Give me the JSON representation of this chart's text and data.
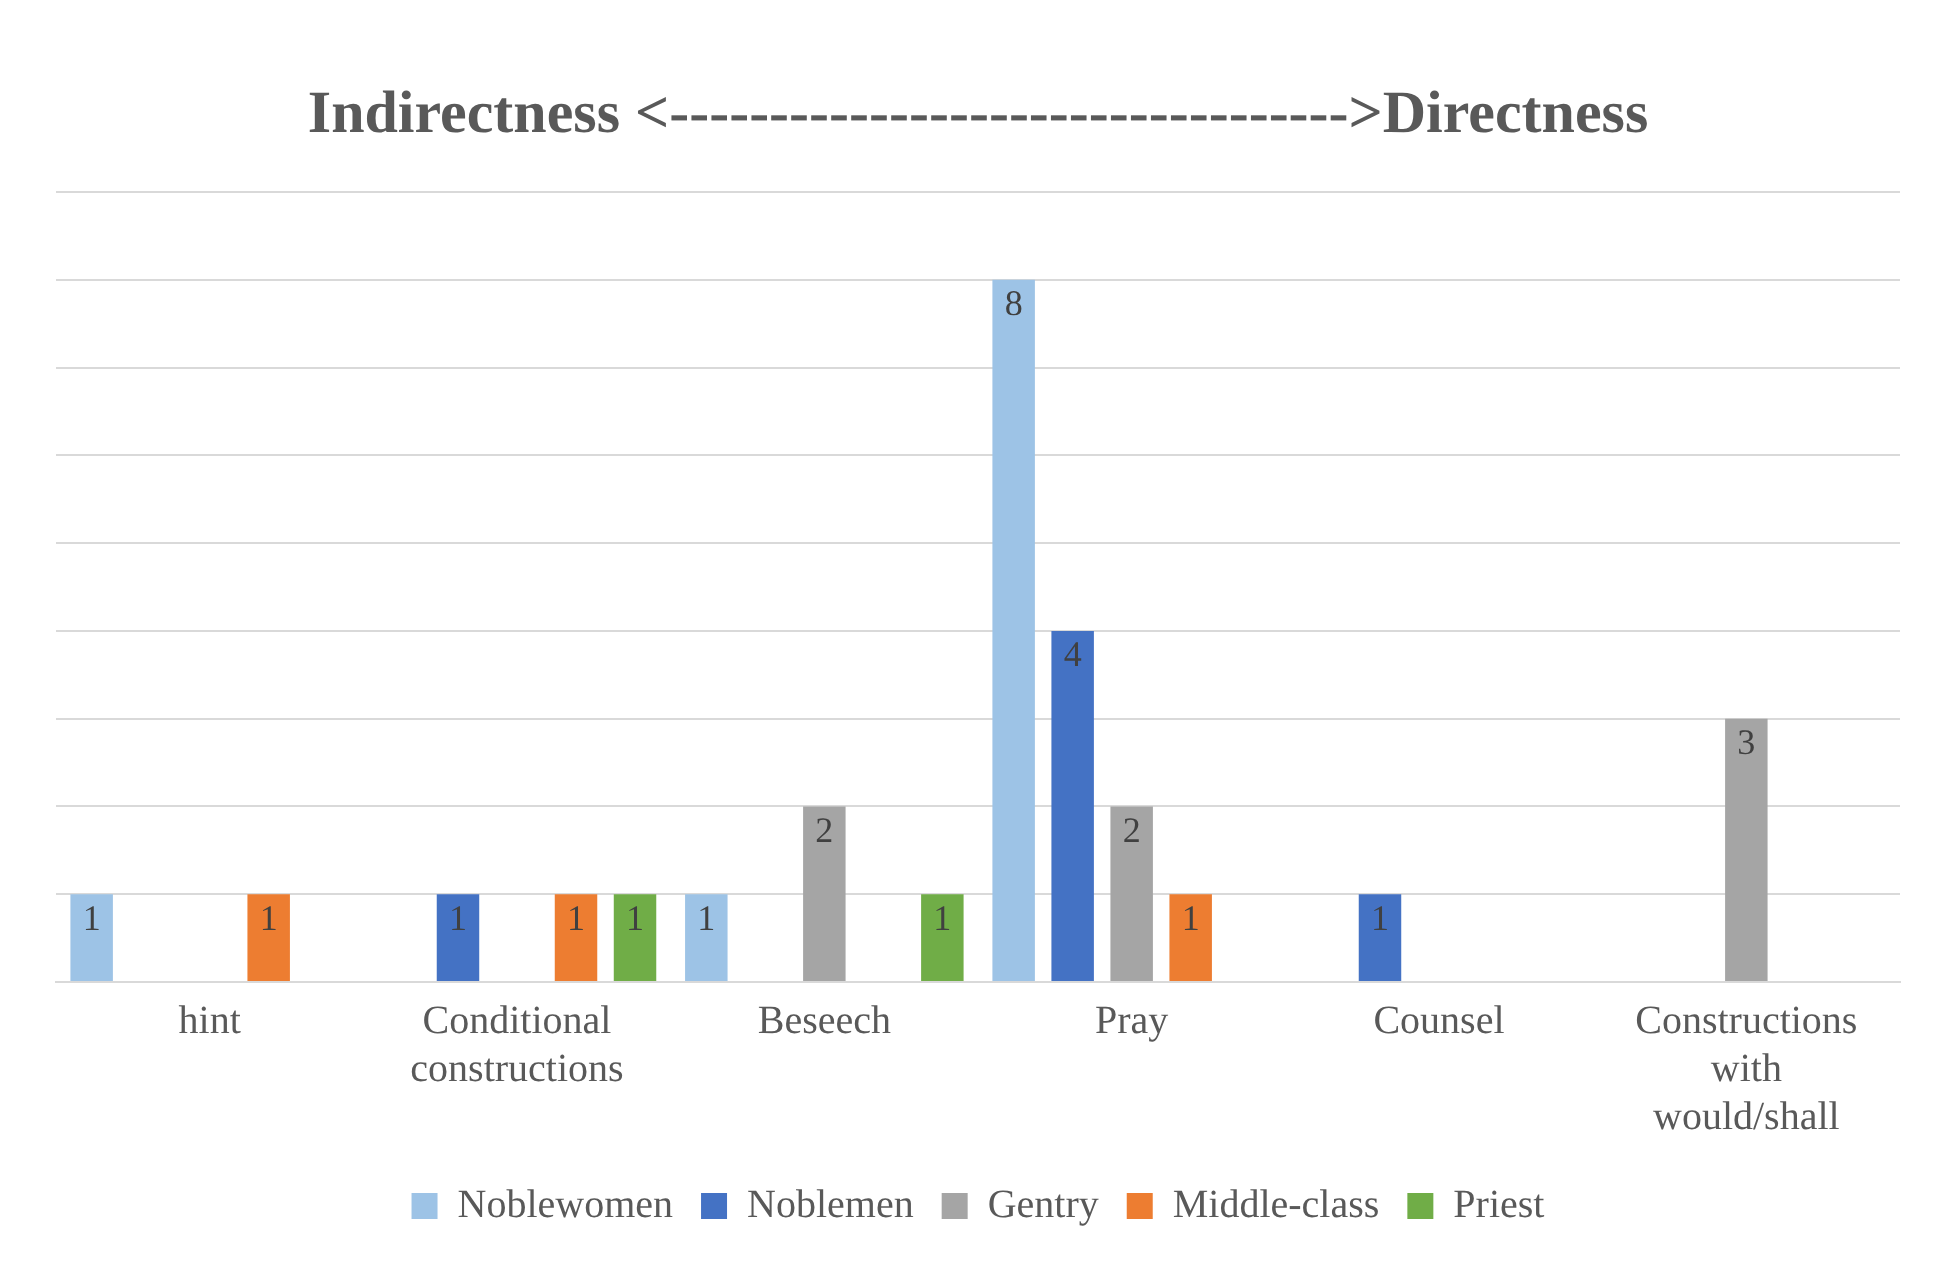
{
  "chart_data": {
    "type": "bar",
    "title": "Indirectness <---------------------------------->Directness",
    "categories": [
      "hint",
      "Conditional constructions",
      "Beseech",
      "Pray",
      "Counsel",
      "Constructions with would/shall"
    ],
    "series": [
      {
        "name": "Noblewomen",
        "color": "#9dc3e6",
        "values": [
          1,
          null,
          1,
          8,
          null,
          null
        ]
      },
      {
        "name": "Noblemen",
        "color": "#4472c4",
        "values": [
          null,
          1,
          null,
          4,
          1,
          null
        ]
      },
      {
        "name": "Gentry",
        "color": "#a5a5a5",
        "values": [
          null,
          null,
          2,
          2,
          null,
          3
        ]
      },
      {
        "name": "Middle-class",
        "color": "#ed7d31",
        "values": [
          1,
          1,
          null,
          1,
          null,
          null
        ]
      },
      {
        "name": "Priest",
        "color": "#70ad47",
        "values": [
          null,
          1,
          1,
          null,
          null,
          null
        ]
      }
    ],
    "ylim": [
      0,
      9
    ],
    "yticks": [
      {
        "value": 0,
        "label": null
      },
      {
        "value": 1,
        "label": null
      },
      {
        "value": 2,
        "label": null
      },
      {
        "value": 3,
        "label": null
      },
      {
        "value": 4,
        "label": null
      },
      {
        "value": 5,
        "label": null
      },
      {
        "value": 6,
        "label": null
      },
      {
        "value": 7,
        "label": null
      },
      {
        "value": 8,
        "label": null
      },
      {
        "value": 9,
        "label": null
      }
    ],
    "tick_labels": "x",
    "grid": "y",
    "data_labels": true,
    "legend": "bottom"
  }
}
